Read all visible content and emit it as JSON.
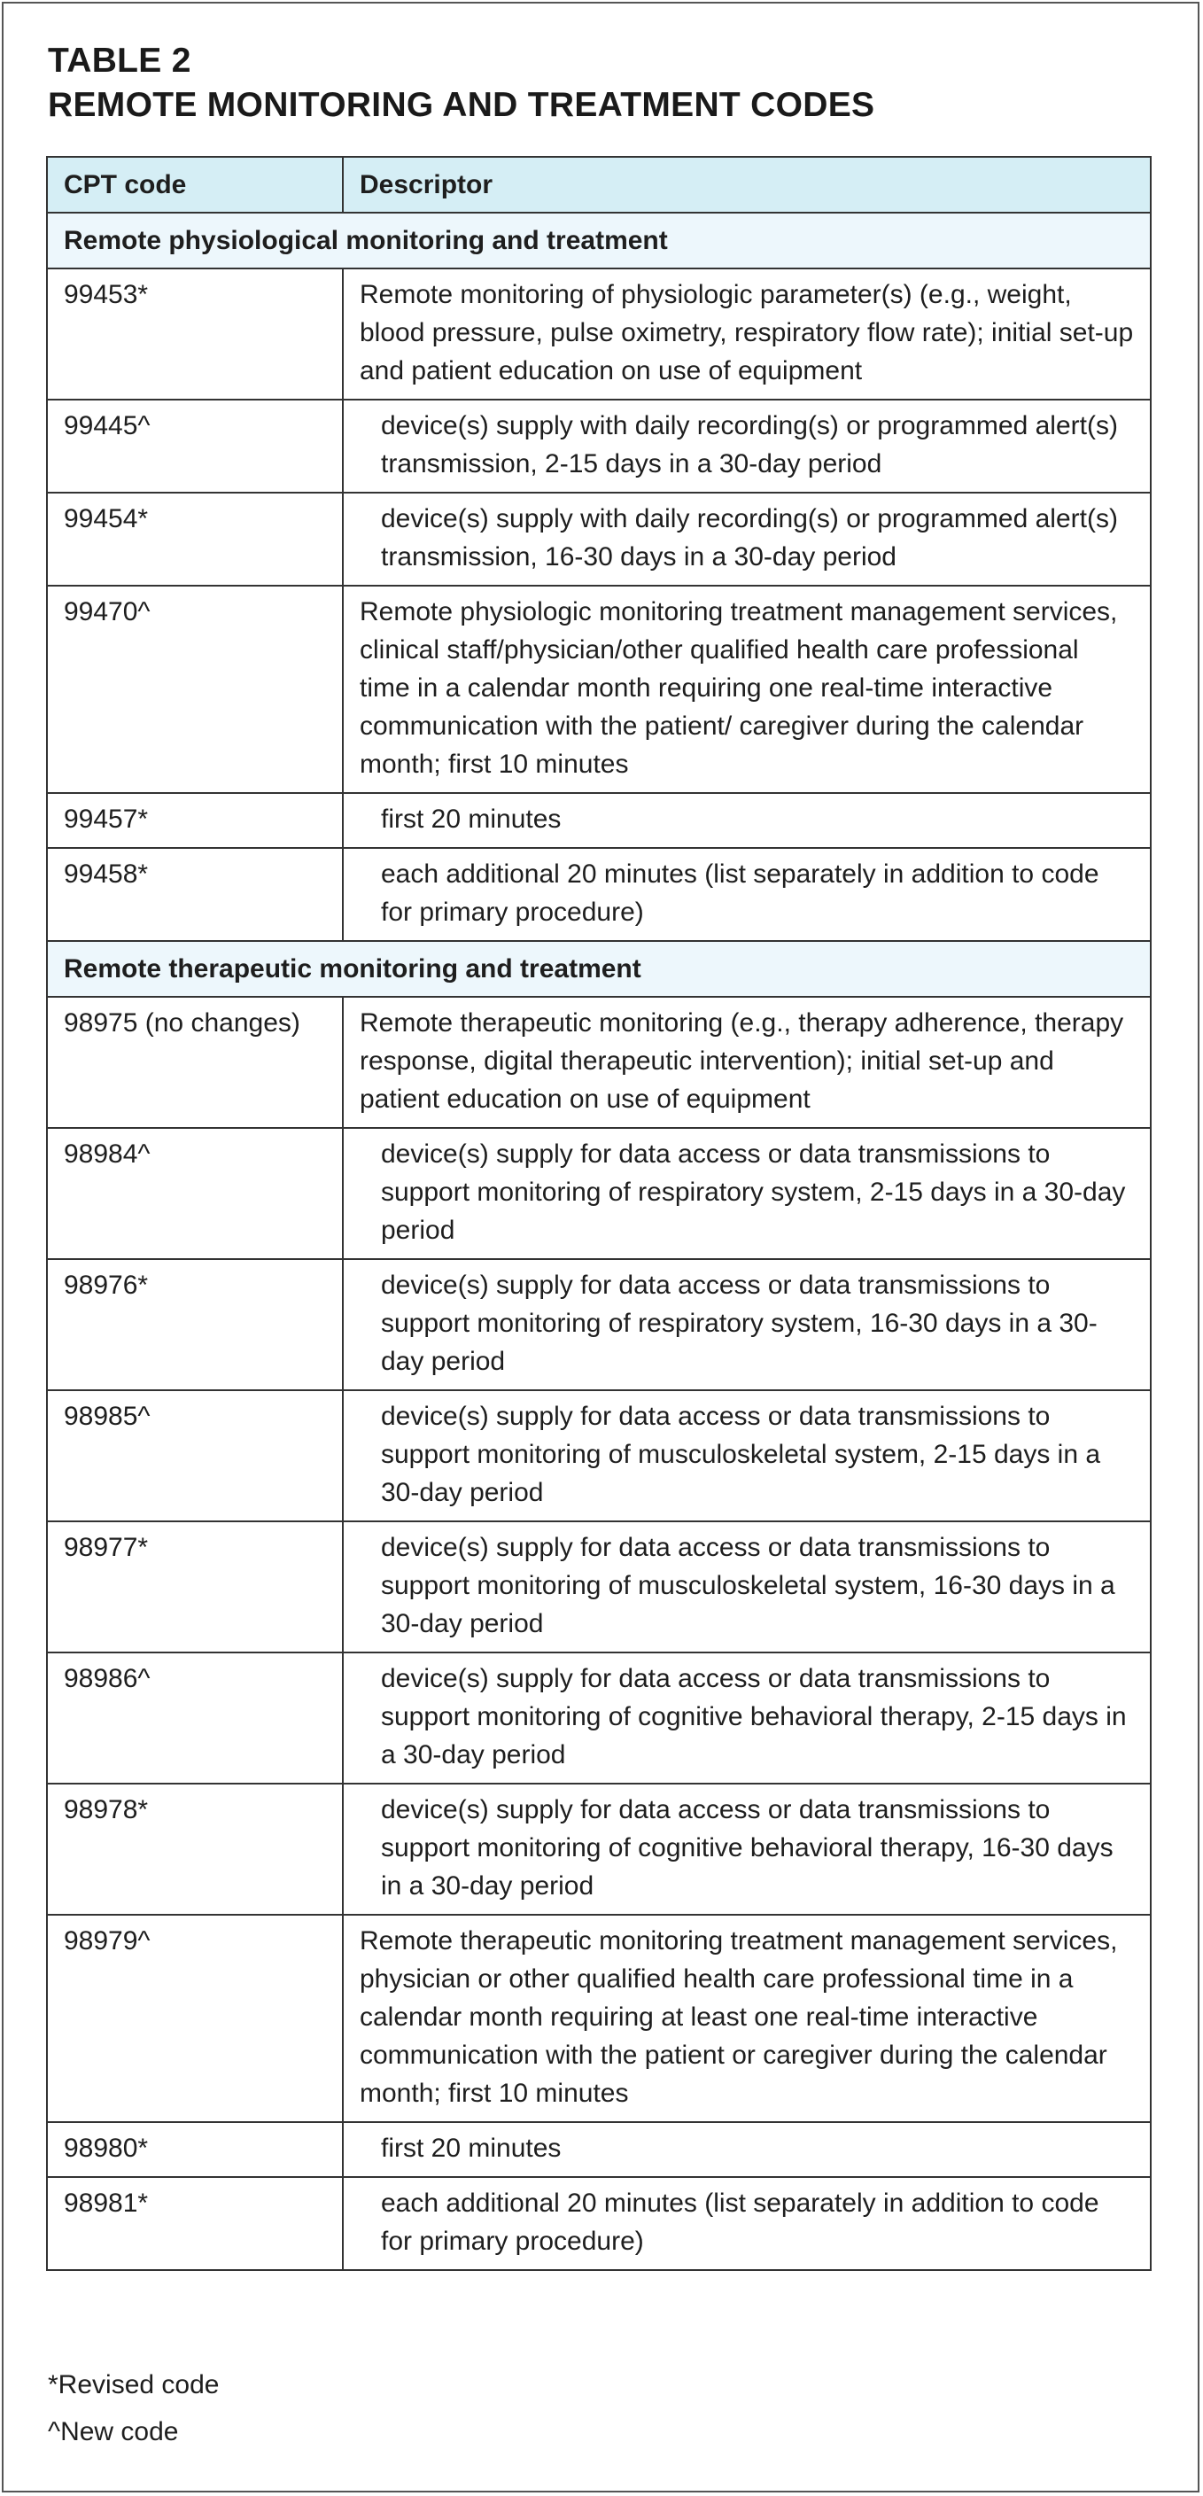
{
  "title": {
    "line1": "TABLE 2",
    "line2": "REMOTE MONITORING AND TREATMENT CODES"
  },
  "colors": {
    "header_bg": "#d5eef5",
    "section_bg": "#edf7fc",
    "border": "#333333"
  },
  "table": {
    "headers": [
      "CPT code",
      "Descriptor"
    ],
    "sections": [
      {
        "title": "Remote physiological monitoring and treatment",
        "rows": [
          {
            "code": "99453*",
            "descriptor": "Remote monitoring of physiologic parameter(s) (e.g., weight, blood pressure, pulse oximetry, respiratory flow rate); initial set-up and patient education on use of equipment",
            "indent": false
          },
          {
            "code": "99445^",
            "descriptor": "device(s) supply with daily recording(s) or programmed alert(s) transmission, 2-15 days in a 30-day period",
            "indent": true
          },
          {
            "code": "99454*",
            "descriptor": "device(s) supply with daily recording(s) or programmed alert(s) transmission, 16-30 days in a 30-day period",
            "indent": true
          },
          {
            "code": "99470^",
            "descriptor": "Remote physiologic monitoring treatment management services, clinical staff/physician/other qualified health care professional time in a calendar month requiring one real-time interactive communication with the patient/ caregiver during the calendar month; first 10 minutes",
            "indent": false
          },
          {
            "code": "99457*",
            "descriptor": "first 20 minutes",
            "indent": true
          },
          {
            "code": "99458*",
            "descriptor": "each additional 20 minutes (list separately in addition to code for primary procedure)",
            "indent": true
          }
        ]
      },
      {
        "title": "Remote therapeutic monitoring and treatment",
        "rows": [
          {
            "code": "98975 (no changes)",
            "descriptor": "Remote therapeutic monitoring (e.g., therapy adherence, therapy response, digital therapeutic intervention); initial set-up and patient education on use of equipment",
            "indent": false
          },
          {
            "code": "98984^",
            "descriptor": "device(s) supply for data access or data transmissions to support monitoring of respiratory system, 2-15 days in a 30-day period",
            "indent": true
          },
          {
            "code": "98976*",
            "descriptor": "device(s) supply for data access or data transmissions to support monitoring of respiratory system, 16-30 days in a 30-day period",
            "indent": true
          },
          {
            "code": "98985^",
            "descriptor": "device(s) supply for data access or data transmissions to support monitoring of musculoskeletal system, 2-15 days in a 30-day period",
            "indent": true
          },
          {
            "code": "98977*",
            "descriptor": "device(s) supply for data access or data transmissions to support monitoring of musculoskeletal system, 16-30 days in a 30-day period",
            "indent": true
          },
          {
            "code": "98986^",
            "descriptor": "device(s) supply for data access or data transmissions to support monitoring of cognitive behavioral therapy, 2-15 days in a 30-day period",
            "indent": true
          },
          {
            "code": "98978*",
            "descriptor": "device(s) supply for data access or data transmissions to support monitoring of cognitive behavioral therapy, 16-30 days in a 30-day period",
            "indent": true
          },
          {
            "code": "98979^",
            "descriptor": "Remote therapeutic monitoring treatment management services, physician or other qualified health care professional time in a calendar month requiring at least one real-time interactive communication with the patient or caregiver during the calendar month; first 10 minutes",
            "indent": false
          },
          {
            "code": "98980*",
            "descriptor": "first 20 minutes",
            "indent": true
          },
          {
            "code": "98981*",
            "descriptor": "each additional 20 minutes (list separately in addition to code for primary procedure)",
            "indent": true
          }
        ]
      }
    ]
  },
  "footnotes": [
    "*Revised code",
    "^New code"
  ]
}
